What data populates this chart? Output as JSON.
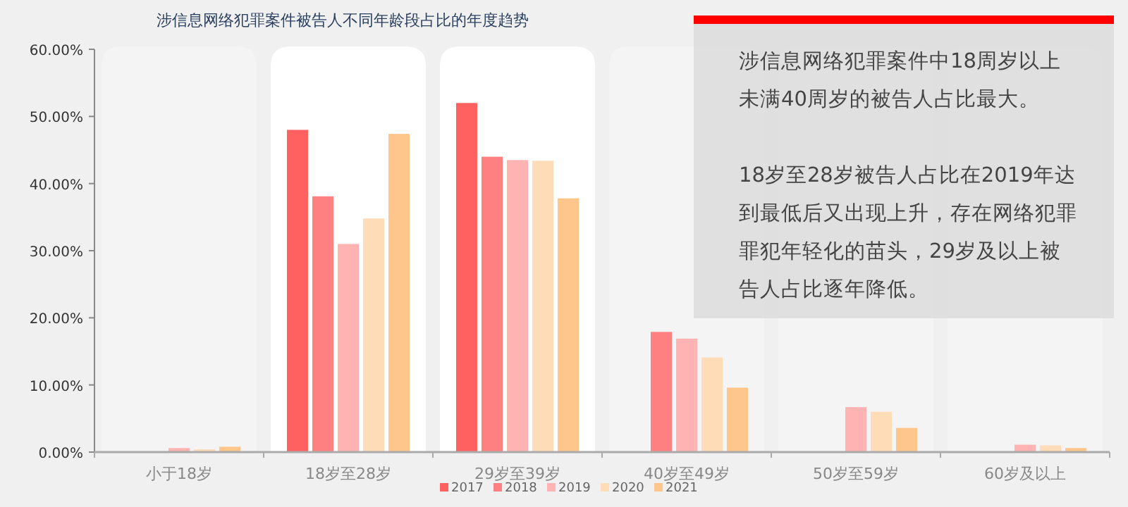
{
  "chart_data": {
    "type": "bar",
    "title": "涉信息网络犯罪案件被告人不同年龄段占比的年度趋势",
    "categories": [
      "小于18岁",
      "18岁至28岁",
      "29岁至39岁",
      "40岁至49岁",
      "50岁至59岁",
      "60岁及以上"
    ],
    "series": [
      {
        "name": "2017",
        "color": "#ff6161",
        "values": [
          0,
          48.0,
          52.0,
          0,
          0,
          0
        ]
      },
      {
        "name": "2018",
        "color": "#ff8080",
        "values": [
          0,
          38.1,
          44.0,
          17.9,
          0,
          0
        ]
      },
      {
        "name": "2019",
        "color": "#ffb3b3",
        "values": [
          0.6,
          31.0,
          43.5,
          16.9,
          6.7,
          1.1
        ]
      },
      {
        "name": "2020",
        "color": "#ffdcb8",
        "values": [
          0.4,
          34.8,
          43.4,
          14.1,
          6.0,
          1.0
        ]
      },
      {
        "name": "2021",
        "color": "#ffc68c",
        "values": [
          0.8,
          47.4,
          37.8,
          9.6,
          3.6,
          0.6
        ]
      }
    ],
    "ylim": [
      0,
      60
    ],
    "yticks": [
      {
        "value": 0,
        "label": "0.00%"
      },
      {
        "value": 10,
        "label": "10.00%"
      },
      {
        "value": 20,
        "label": "20.00%"
      },
      {
        "value": 30,
        "label": "30.00%"
      },
      {
        "value": 40,
        "label": "40.00%"
      },
      {
        "value": 50,
        "label": "50.00%"
      },
      {
        "value": 60,
        "label": "60.00%"
      }
    ],
    "grid": false,
    "legend": "bottom",
    "bands": [
      {
        "axis": "x",
        "from": "18岁至28岁",
        "to": "18岁至28岁",
        "color": "#ffffff"
      },
      {
        "axis": "x",
        "from": "29岁至39岁",
        "to": "29岁至39岁",
        "color": "#ffffff"
      }
    ],
    "annotations": [
      "涉信息网络犯罪案件中18周岁以上未满40周岁的被告人占比最大。",
      "18岁至28岁被告人占比在2019年达到最低后又出现上升，存在网络犯罪罪犯年轻化的苗头，29岁及以上被告人占比逐年降低。"
    ]
  }
}
